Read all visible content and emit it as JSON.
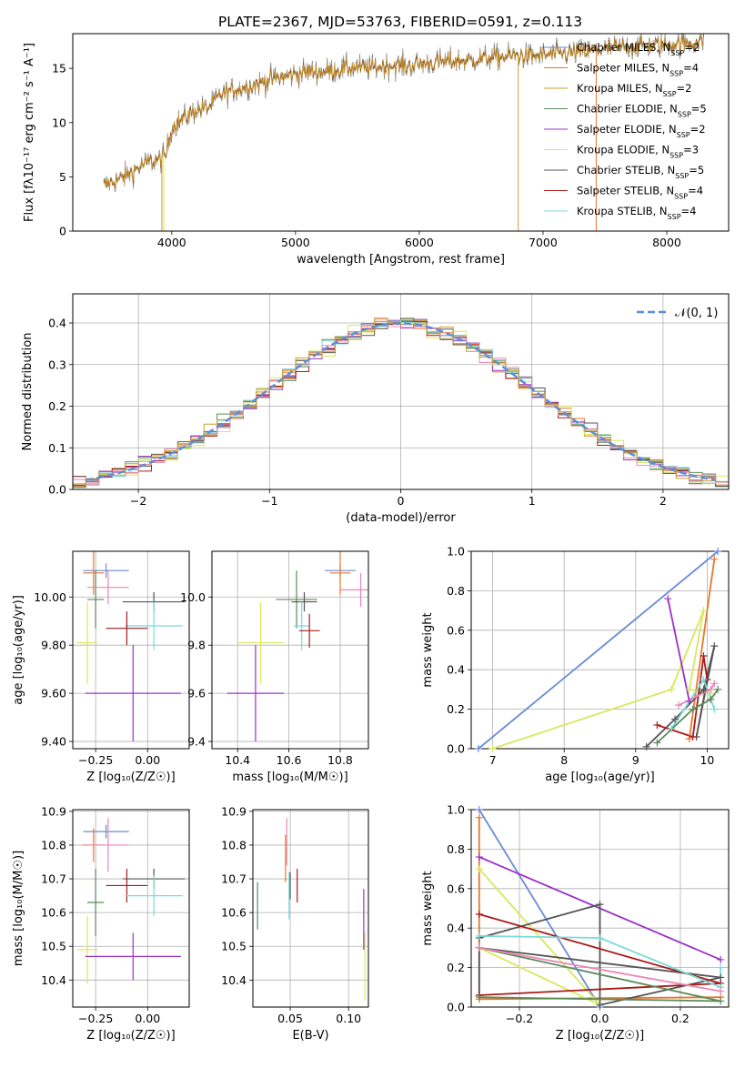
{
  "figure_title": "PLATE=2367, MJD=53763, FIBERID=0591, z=0.113",
  "colors": {
    "Chabrier MILES": "#6a8ad8",
    "Salpeter MILES": "#e8772e",
    "Kroupa MILES": "#c9a227",
    "Chabrier ELODIE": "#5a8a5a",
    "Salpeter ELODIE": "#9b30c8",
    "Kroupa ELODIE": "#d8e85a",
    "Chabrier STELIB": "#555555",
    "Salpeter STELIB": "#aa1a1a",
    "Kroupa STELIB": "#7adada",
    "extra": "#e888b8"
  },
  "chart_data": [
    {
      "id": "spectrum",
      "type": "line",
      "title": "PLATE=2367, MJD=53763, FIBERID=0591, z=0.113",
      "xlabel": "wavelength [Angstrom, rest frame]",
      "ylabel": "Flux [fλ10⁻¹⁷ erg cm⁻² s⁻¹ A⁻¹]",
      "xlim": [
        3200,
        8500
      ],
      "ylim": [
        0,
        18.2
      ],
      "xticks": [
        4000,
        5000,
        6000,
        7000,
        8000
      ],
      "yticks": [
        0,
        5,
        10,
        15
      ],
      "legend_position": "right",
      "legend": [
        {
          "name": "Chabrier MILES, N",
          "sub": "SSP",
          "suffix": "=2"
        },
        {
          "name": "Salpeter MILES, N",
          "sub": "SSP",
          "suffix": "=4"
        },
        {
          "name": "Kroupa MILES, N",
          "sub": "SSP",
          "suffix": "=2"
        },
        {
          "name": "Chabrier ELODIE, N",
          "sub": "SSP",
          "suffix": "=5"
        },
        {
          "name": "Salpeter ELODIE, N",
          "sub": "SSP",
          "suffix": "=2"
        },
        {
          "name": "Kroupa ELODIE, N",
          "sub": "SSP",
          "suffix": "=3"
        },
        {
          "name": "Chabrier STELIB, N",
          "sub": "SSP",
          "suffix": "=5"
        },
        {
          "name": "Salpeter STELIB, N",
          "sub": "SSP",
          "suffix": "=4"
        },
        {
          "name": "Kroupa STELIB, N",
          "sub": "SSP",
          "suffix": "=4"
        }
      ],
      "continuum": [
        [
          3450,
          4.2
        ],
        [
          3600,
          4.9
        ],
        [
          3700,
          5.6
        ],
        [
          3800,
          6.3
        ],
        [
          3900,
          6.6
        ],
        [
          3950,
          6.9
        ],
        [
          4000,
          9.6
        ],
        [
          4100,
          10.4
        ],
        [
          4200,
          11.2
        ],
        [
          4300,
          11.4
        ],
        [
          4400,
          12.6
        ],
        [
          4500,
          13.0
        ],
        [
          4600,
          13.3
        ],
        [
          4700,
          13.6
        ],
        [
          4800,
          14.0
        ],
        [
          4900,
          14.2
        ],
        [
          5000,
          14.5
        ],
        [
          5100,
          14.7
        ],
        [
          5200,
          14.7
        ],
        [
          5300,
          14.8
        ],
        [
          5400,
          15.0
        ],
        [
          5500,
          15.1
        ],
        [
          5600,
          15.0
        ],
        [
          5700,
          15.2
        ],
        [
          5800,
          15.3
        ],
        [
          5900,
          15.2
        ],
        [
          6000,
          15.4
        ],
        [
          6100,
          15.5
        ],
        [
          6200,
          15.6
        ],
        [
          6300,
          15.7
        ],
        [
          6400,
          15.7
        ],
        [
          6500,
          15.9
        ],
        [
          6600,
          16.0
        ],
        [
          6700,
          16.1
        ],
        [
          6800,
          16.2
        ],
        [
          6900,
          16.1
        ],
        [
          7000,
          16.2
        ],
        [
          7100,
          16.3
        ],
        [
          7200,
          16.4
        ],
        [
          7300,
          16.5
        ],
        [
          7400,
          16.6
        ],
        [
          7500,
          16.8
        ],
        [
          7600,
          16.9
        ],
        [
          7700,
          17.0
        ],
        [
          7800,
          17.1
        ],
        [
          7900,
          17.1
        ],
        [
          8000,
          17.2
        ],
        [
          8100,
          17.3
        ],
        [
          8200,
          17.3
        ],
        [
          8300,
          17.5
        ]
      ]
    },
    {
      "id": "residuals",
      "type": "histogram",
      "xlabel": "(data-model)/error",
      "ylabel": "Normed distribution",
      "xlim": [
        -2.5,
        2.5
      ],
      "ylim": [
        0,
        0.47
      ],
      "xticks": [
        -2,
        -1,
        0,
        1,
        2
      ],
      "yticks": [
        0.0,
        0.1,
        0.2,
        0.3,
        0.4
      ],
      "legend_position": "upper right",
      "legend": [
        "𝒩(0, 1)"
      ],
      "bin_width": 0.1
    },
    {
      "id": "z-age",
      "type": "errorbar",
      "xlabel": "Z [log₁₀(Z/Z☉)]",
      "ylabel": "age  [log₁₀(age/yr)]",
      "xlim": [
        -0.36,
        0.2
      ],
      "ylim": [
        9.37,
        10.19
      ],
      "xticks": [
        -0.25,
        0.0
      ],
      "xticklabels": [
        "−0.25",
        "0.00"
      ],
      "yticks": [
        9.4,
        9.6,
        9.8,
        10.0
      ],
      "points": [
        {
          "series": "Chabrier MILES",
          "x": -0.2,
          "xerr": 0.11,
          "y": 10.11,
          "yerr": 0.03
        },
        {
          "series": "Salpeter MILES",
          "x": -0.26,
          "xerr": 0.05,
          "y": 10.1,
          "yerr": 0.09
        },
        {
          "series": "Chabrier ELODIE",
          "x": -0.25,
          "xerr": 0.04,
          "y": 9.99,
          "yerr": 0.12
        },
        {
          "series": "extra",
          "x": -0.19,
          "xerr": 0.1,
          "y": 10.04,
          "yerr": 0.07
        },
        {
          "series": "Chabrier STELIB",
          "x": 0.03,
          "xerr": 0.15,
          "y": 9.98,
          "yerr": 0.04
        },
        {
          "series": "Kroupa STELIB",
          "x": 0.03,
          "xerr": 0.14,
          "y": 9.88,
          "yerr": 0.1
        },
        {
          "series": "Salpeter STELIB",
          "x": -0.1,
          "xerr": 0.1,
          "y": 9.87,
          "yerr": 0.07
        },
        {
          "series": "Kroupa ELODIE",
          "x": -0.29,
          "xerr": 0.05,
          "y": 9.81,
          "yerr": 0.17
        },
        {
          "series": "Salpeter ELODIE",
          "x": -0.07,
          "xerr": 0.23,
          "y": 9.6,
          "yerr": 0.2
        }
      ]
    },
    {
      "id": "mass-age",
      "type": "errorbar",
      "xlabel": "mass [log₁₀(M/M☉)]",
      "ylabel": "",
      "xlim": [
        10.3,
        10.91
      ],
      "ylim": [
        9.37,
        10.19
      ],
      "xticks": [
        10.4,
        10.6,
        10.8
      ],
      "yticks": [
        9.4,
        9.6,
        9.8,
        10.0
      ],
      "points": [
        {
          "series": "Chabrier MILES",
          "x": 10.8,
          "xerr": 0.06,
          "y": 10.11,
          "yerr": 0.03
        },
        {
          "series": "Salpeter MILES",
          "x": 10.8,
          "xerr": 0.04,
          "y": 10.1,
          "yerr": 0.09
        },
        {
          "series": "extra",
          "x": 10.88,
          "xerr": 0.08,
          "y": 10.03,
          "yerr": 0.07
        },
        {
          "series": "Chabrier ELODIE",
          "x": 10.63,
          "xerr": 0.08,
          "y": 9.99,
          "yerr": 0.12
        },
        {
          "series": "Chabrier STELIB",
          "x": 10.66,
          "xerr": 0.05,
          "y": 9.98,
          "yerr": 0.04
        },
        {
          "series": "Kroupa STELIB",
          "x": 10.65,
          "xerr": 0.03,
          "y": 9.88,
          "yerr": 0.1
        },
        {
          "series": "Salpeter STELIB",
          "x": 10.68,
          "xerr": 0.04,
          "y": 9.86,
          "yerr": 0.07
        },
        {
          "series": "Kroupa ELODIE",
          "x": 10.49,
          "xerr": 0.09,
          "y": 9.81,
          "yerr": 0.17
        },
        {
          "series": "Salpeter ELODIE",
          "x": 10.47,
          "xerr": 0.11,
          "y": 9.6,
          "yerr": 0.2
        }
      ]
    },
    {
      "id": "age-massweight",
      "type": "line",
      "xlabel": "age  [log₁₀(age/yr)]",
      "ylabel": "mass weight",
      "xlim": [
        6.7,
        10.3
      ],
      "ylim": [
        0,
        1
      ],
      "xticks": [
        7,
        8,
        9,
        10
      ],
      "yticks": [
        0.0,
        0.2,
        0.4,
        0.6,
        0.8,
        1.0
      ],
      "series": [
        {
          "series": "Chabrier MILES",
          "x": [
            6.8,
            10.15
          ],
          "y": [
            0.0,
            1.0
          ]
        },
        {
          "series": "Kroupa ELODIE",
          "x": [
            7.0,
            9.5,
            9.95,
            9.75,
            10.05
          ],
          "y": [
            0.0,
            0.3,
            0.7,
            0.3,
            0.28
          ]
        },
        {
          "series": "Salpeter MILES",
          "x": [
            9.75,
            10.1
          ],
          "y": [
            0.05,
            0.96
          ]
        },
        {
          "series": "Salpeter ELODIE",
          "x": [
            9.45,
            9.75
          ],
          "y": [
            0.76,
            0.24
          ]
        },
        {
          "series": "Chabrier STELIB",
          "x": [
            9.15,
            9.55,
            9.95,
            10.1,
            9.85,
            10.0
          ],
          "y": [
            0.01,
            0.15,
            0.3,
            0.52,
            0.06,
            0.35
          ]
        },
        {
          "series": "Salpeter STELIB",
          "x": [
            9.3,
            9.8,
            9.95,
            10.0
          ],
          "y": [
            0.12,
            0.06,
            0.47,
            0.35
          ]
        },
        {
          "series": "Kroupa STELIB",
          "x": [
            9.5,
            9.95,
            10.1
          ],
          "y": [
            0.1,
            0.35,
            0.2
          ]
        },
        {
          "series": "Chabrier ELODIE",
          "x": [
            9.3,
            9.8,
            10.05,
            10.15
          ],
          "y": [
            0.03,
            0.2,
            0.25,
            0.3
          ]
        },
        {
          "series": "extra",
          "x": [
            9.6,
            10.05,
            10.1
          ],
          "y": [
            0.22,
            0.3,
            0.33
          ]
        }
      ]
    },
    {
      "id": "z-mass",
      "type": "errorbar",
      "xlabel": "Z [log₁₀(Z/Z☉)]",
      "ylabel": "mass [log₁₀(M/M☉)]",
      "xlim": [
        -0.36,
        0.2
      ],
      "ylim": [
        10.32,
        10.905
      ],
      "xticks": [
        -0.25,
        0.0
      ],
      "xticklabels": [
        "−0.25",
        "0.00"
      ],
      "yticks": [
        10.4,
        10.5,
        10.6,
        10.7,
        10.8,
        10.9
      ],
      "points": [
        {
          "series": "Chabrier MILES",
          "x": -0.2,
          "xerr": 0.11,
          "y": 10.84,
          "yerr": 0.02
        },
        {
          "series": "Salpeter MILES",
          "x": -0.26,
          "xerr": 0.05,
          "y": 10.8,
          "yerr": 0.05
        },
        {
          "series": "extra",
          "x": -0.19,
          "xerr": 0.1,
          "y": 10.8,
          "yerr": 0.08
        },
        {
          "series": "Chabrier STELIB",
          "x": 0.03,
          "xerr": 0.15,
          "y": 10.7,
          "yerr": 0.03
        },
        {
          "series": "Salpeter STELIB",
          "x": -0.1,
          "xerr": 0.1,
          "y": 10.68,
          "yerr": 0.05
        },
        {
          "series": "Kroupa STELIB",
          "x": 0.03,
          "xerr": 0.14,
          "y": 10.65,
          "yerr": 0.06
        },
        {
          "series": "Chabrier ELODIE",
          "x": -0.25,
          "xerr": 0.04,
          "y": 10.63,
          "yerr": 0.1
        },
        {
          "series": "Kroupa ELODIE",
          "x": -0.29,
          "xerr": 0.05,
          "y": 10.49,
          "yerr": 0.1
        },
        {
          "series": "Salpeter ELODIE",
          "x": -0.07,
          "xerr": 0.23,
          "y": 10.47,
          "yerr": 0.07
        }
      ]
    },
    {
      "id": "ebv-mass",
      "type": "errorbar",
      "xlabel": "E(B-V)",
      "ylabel": "",
      "xlim": [
        0.018,
        0.117
      ],
      "ylim": [
        10.32,
        10.905
      ],
      "xticks": [
        0.05,
        0.1
      ],
      "xticklabels": [
        "0.05",
        "0.10"
      ],
      "yticks": [
        10.4,
        10.5,
        10.6,
        10.7,
        10.8,
        10.9
      ],
      "points": [
        {
          "series": "Chabrier ELODIE",
          "x": 0.022,
          "y": 10.62,
          "yerr": 0.07
        },
        {
          "series": "Salpeter MILES",
          "x": 0.046,
          "y": 10.76,
          "yerr": 0.07
        },
        {
          "series": "extra",
          "x": 0.047,
          "y": 10.81,
          "yerr": 0.07
        },
        {
          "series": "Kroupa STELIB",
          "x": 0.049,
          "y": 10.65,
          "yerr": 0.07
        },
        {
          "series": "Chabrier STELIB",
          "x": 0.05,
          "y": 10.68,
          "yerr": 0.04
        },
        {
          "series": "Salpeter STELIB",
          "x": 0.056,
          "y": 10.68,
          "yerr": 0.05
        },
        {
          "series": "Salpeter ELODIE",
          "x": 0.113,
          "y": 10.58,
          "yerr": 0.09
        },
        {
          "series": "Kroupa ELODIE",
          "x": 0.114,
          "y": 10.44,
          "yerr": 0.1
        }
      ]
    },
    {
      "id": "z-massweight",
      "type": "line",
      "xlabel": "Z [log₁₀(Z/Z☉)]",
      "ylabel": "mass weight",
      "xlim": [
        -0.32,
        0.32
      ],
      "ylim": [
        0,
        1
      ],
      "xticks": [
        -0.2,
        0.0,
        0.2
      ],
      "xticklabels": [
        "−0.2",
        "0.0",
        "0.2"
      ],
      "yticks": [
        0.0,
        0.2,
        0.4,
        0.6,
        0.8,
        1.0
      ],
      "series": [
        {
          "series": "Chabrier MILES",
          "x": [
            -0.3,
            0.0
          ],
          "y": [
            1.0,
            0.0
          ]
        },
        {
          "series": "Salpeter MILES",
          "x": [
            -0.3,
            -0.3,
            0.3
          ],
          "y": [
            0.96,
            0.04,
            0.05
          ]
        },
        {
          "series": "Salpeter ELODIE",
          "x": [
            -0.3,
            0.3
          ],
          "y": [
            0.76,
            0.24
          ]
        },
        {
          "series": "Kroupa ELODIE",
          "x": [
            -0.3,
            0.0,
            -0.3
          ],
          "y": [
            0.7,
            0.01,
            0.3
          ]
        },
        {
          "series": "Chabrier STELIB",
          "x": [
            -0.3,
            0.0,
            0.0,
            0.3,
            -0.3,
            -0.3
          ],
          "y": [
            0.35,
            0.52,
            0.01,
            0.15,
            0.3,
            0.06
          ]
        },
        {
          "series": "Salpeter STELIB",
          "x": [
            -0.3,
            0.3,
            -0.3
          ],
          "y": [
            0.47,
            0.12,
            0.06
          ]
        },
        {
          "series": "Kroupa STELIB",
          "x": [
            -0.3,
            0.0,
            0.3,
            0.3
          ],
          "y": [
            0.36,
            0.35,
            0.1,
            0.2
          ]
        },
        {
          "series": "Chabrier ELODIE",
          "x": [
            -0.3,
            0.3,
            -0.3
          ],
          "y": [
            0.3,
            0.03,
            0.05
          ]
        },
        {
          "series": "extra",
          "x": [
            -0.3,
            0.3
          ],
          "y": [
            0.3,
            0.08
          ]
        }
      ]
    }
  ]
}
